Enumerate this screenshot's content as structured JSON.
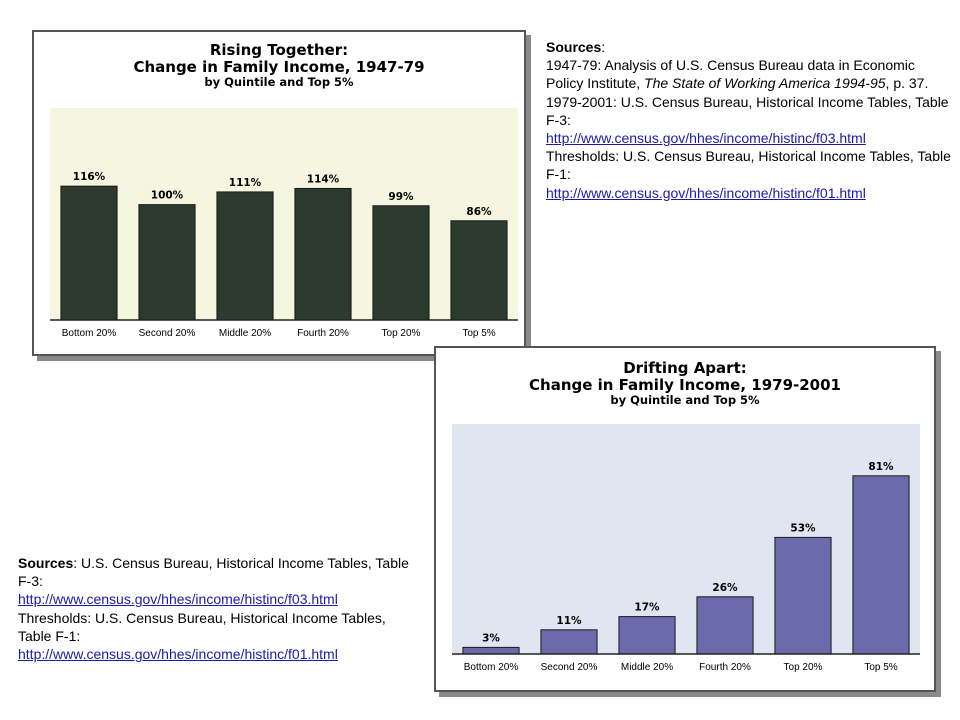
{
  "chart_data": [
    {
      "type": "bar",
      "title": "Rising Together:",
      "subtitle": "Change in Family Income, 1947-79",
      "subtitle2": "by Quintile and Top 5%",
      "categories": [
        "Bottom 20%",
        "Second 20%",
        "Middle 20%",
        "Fourth 20%",
        "Top 20%",
        "Top 5%"
      ],
      "values": [
        116,
        100,
        111,
        114,
        99,
        86
      ],
      "data_labels": [
        "116%",
        "100%",
        "111%",
        "114%",
        "99%",
        "86%"
      ],
      "ylim": [
        0,
        130
      ],
      "grid": false,
      "bar_color": "#2c3b2e",
      "plot_background": "#f5f6df"
    },
    {
      "type": "bar",
      "title": "Drifting Apart:",
      "subtitle": "Change in Family Income, 1979-2001",
      "subtitle2": "by Quintile and Top 5%",
      "categories": [
        "Bottom 20%",
        "Second 20%",
        "Middle 20%",
        "Fourth 20%",
        "Top 20%",
        "Top 5%"
      ],
      "values": [
        3,
        11,
        17,
        26,
        53,
        81
      ],
      "data_labels": [
        "3%",
        "11%",
        "17%",
        "26%",
        "53%",
        "81%"
      ],
      "ylim": [
        0,
        90
      ],
      "grid": false,
      "bar_color": "#6b6aaa",
      "plot_background": "#dfe6f2"
    }
  ],
  "sources_top": {
    "heading": "Sources",
    "heading_suffix": ":",
    "line1": "1947-79: Analysis of U.S. Census Bureau data in Economic Policy Institute, ",
    "book_title": "The State of Working America 1994-95",
    "line1_end": ", p. 37.",
    "line2": "1979-2001: U.S. Census Bureau, Historical Income Tables, Table F-3:",
    "link1": "http://www.census.gov/hhes/income/histinc/f03.html",
    "line3": "Thresholds: U.S. Census Bureau, Historical Income Tables, Table F-1:",
    "link2": "http://www.census.gov/hhes/income/histinc/f01.html"
  },
  "sources_bottom": {
    "heading": "Sources",
    "line1": ": U.S. Census Bureau, Historical Income Tables, Table F-3:",
    "link1": "http://www.census.gov/hhes/income/histinc/f03.html",
    "line2": "Thresholds: U.S. Census Bureau, Historical Income Tables, Table F-1:",
    "link2": "http://www.census.gov/hhes/income/histinc/f01.html"
  }
}
